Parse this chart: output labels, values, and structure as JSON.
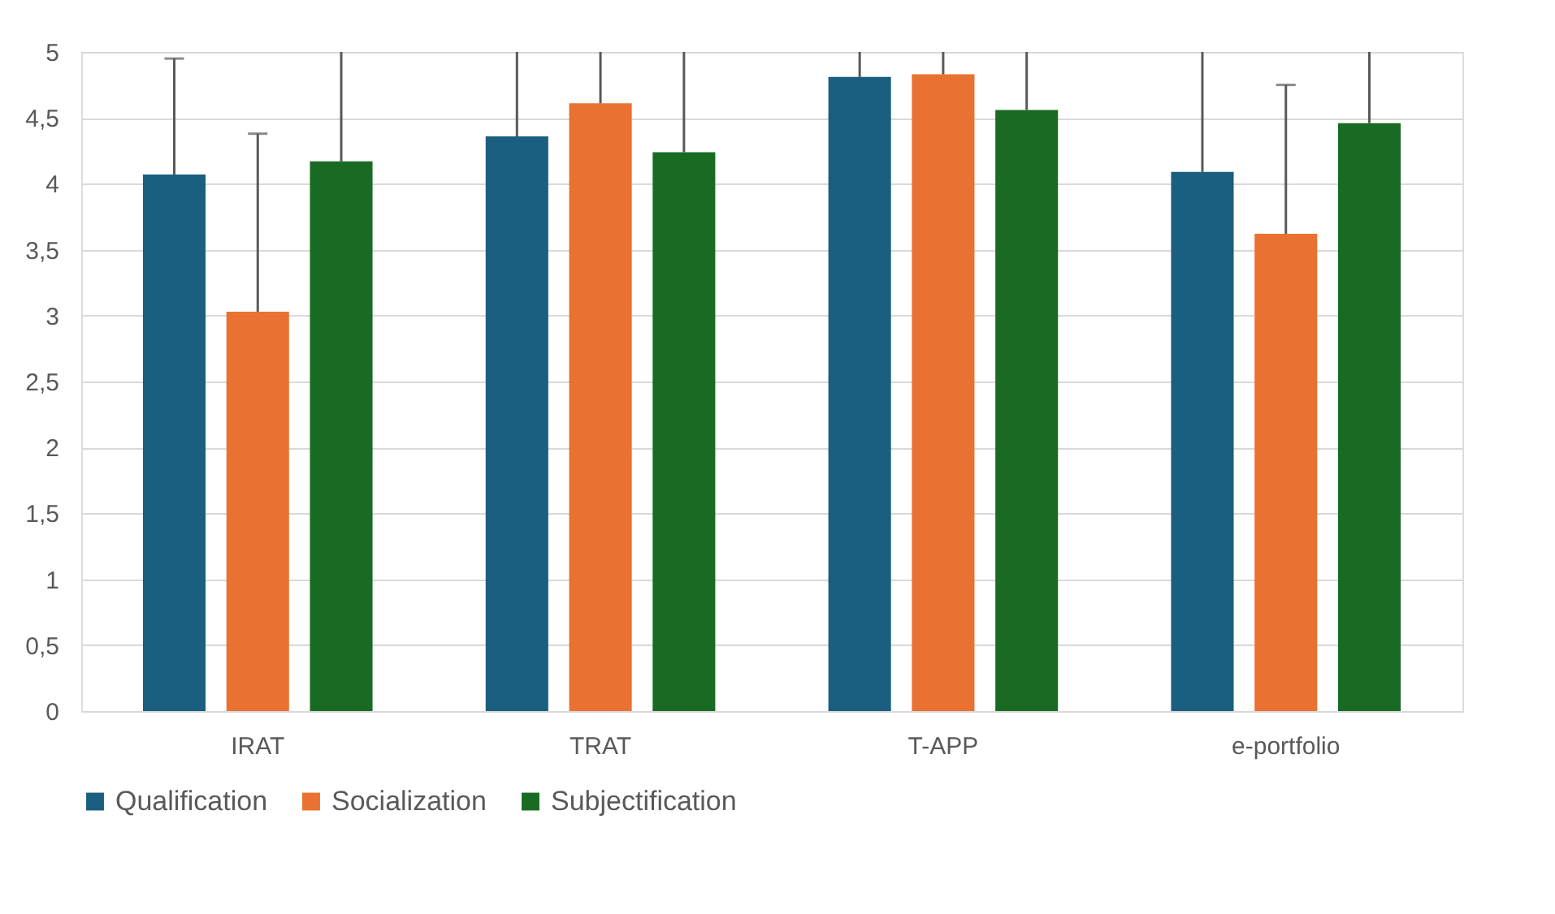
{
  "chart_data": {
    "type": "bar",
    "categories": [
      "IRAT",
      "TRAT",
      "T-APP",
      "e-portfolio"
    ],
    "series": [
      {
        "name": "Qualification",
        "color": "#1a5e80",
        "values": [
          4.07,
          4.36,
          4.81,
          4.09
        ],
        "errors": [
          [
            4.07,
            4.95
          ],
          [
            4.36,
            5
          ],
          [
            4.81,
            5
          ],
          [
            4.09,
            5
          ]
        ]
      },
      {
        "name": "Socialization",
        "color": "#e97132",
        "values": [
          3.03,
          4.61,
          4.83,
          3.62
        ],
        "errors": [
          [
            3.03,
            4.38
          ],
          [
            4.61,
            5
          ],
          [
            4.83,
            5
          ],
          [
            3.62,
            4.75
          ]
        ]
      },
      {
        "name": "Subjectification",
        "color": "#196b24",
        "values": [
          4.17,
          4.24,
          4.56,
          4.46
        ],
        "errors": [
          [
            4.17,
            5
          ],
          [
            4.24,
            5
          ],
          [
            4.56,
            5
          ],
          [
            4.46,
            5
          ]
        ]
      }
    ],
    "ylim": [
      0,
      5
    ],
    "yticks": [
      0,
      {
        "value": 0.5,
        "label": "0,5"
      },
      1,
      {
        "value": 1.5,
        "label": "1,5"
      },
      2,
      {
        "value": 2.5,
        "label": "2,5"
      },
      3,
      {
        "value": 3.5,
        "label": "3,5"
      },
      4,
      {
        "value": 4.5,
        "label": "4,5"
      },
      5
    ],
    "grid": "y",
    "legend": "bottom"
  }
}
